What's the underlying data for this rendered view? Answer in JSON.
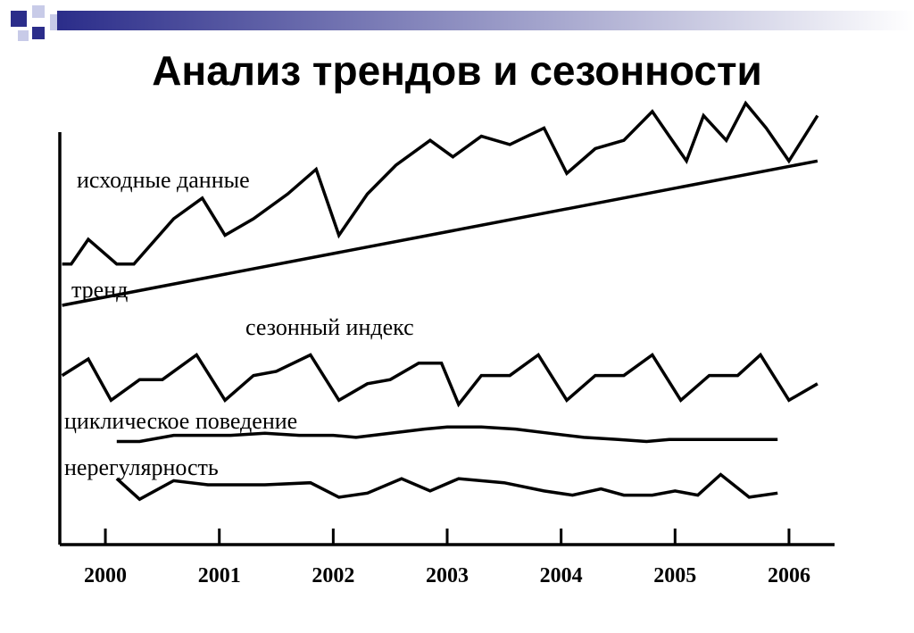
{
  "slide": {
    "title": "Анализ трендов и сезонности"
  },
  "colors": {
    "accent_dark": "#2b2d8a",
    "accent_light": "#c8cbe8",
    "line": "#000000"
  },
  "chart_data": {
    "type": "line",
    "x_unit": "year",
    "xlim": [
      1999.6,
      2006.4
    ],
    "x_ticks": [
      2000,
      2001,
      2002,
      2003,
      2004,
      2005,
      2006
    ],
    "tick_labels": [
      "2000",
      "2001",
      "2002",
      "2003",
      "2004",
      "2005",
      "2006"
    ],
    "y_axis_labeled": false,
    "ylim": [
      0,
      100
    ],
    "grid": false,
    "series": [
      {
        "name": "исходные данные",
        "x": [
          1999.62,
          1999.7,
          1999.85,
          2000.1,
          2000.25,
          2000.6,
          2000.85,
          2001.05,
          2001.3,
          2001.6,
          2001.85,
          2002.05,
          2002.3,
          2002.55,
          2002.85,
          2003.05,
          2003.3,
          2003.55,
          2003.85,
          2004.05,
          2004.3,
          2004.55,
          2004.8,
          2004.95,
          2005.1,
          2005.25,
          2005.45,
          2005.62,
          2005.8,
          2006.0,
          2006.25
        ],
        "values": [
          68,
          68,
          74,
          68,
          68,
          79,
          84,
          75,
          79,
          85,
          91,
          75,
          85,
          92,
          98,
          94,
          99,
          97,
          101,
          90,
          96,
          98,
          105,
          99,
          93,
          104,
          98,
          107,
          101,
          93,
          104
        ]
      },
      {
        "name": "тренд",
        "x": [
          1999.62,
          2006.25
        ],
        "values": [
          58,
          93
        ]
      },
      {
        "name": "сезонный индекс",
        "x": [
          1999.62,
          1999.85,
          2000.05,
          2000.3,
          2000.5,
          2000.8,
          2001.05,
          2001.3,
          2001.5,
          2001.8,
          2002.05,
          2002.3,
          2002.5,
          2002.75,
          2002.95,
          2003.1,
          2003.3,
          2003.55,
          2003.8,
          2004.05,
          2004.3,
          2004.55,
          2004.8,
          2005.05,
          2005.3,
          2005.55,
          2005.75,
          2006.0,
          2006.25
        ],
        "values": [
          41,
          45,
          35,
          40,
          40,
          46,
          35,
          41,
          42,
          46,
          35,
          39,
          40,
          44,
          44,
          34,
          41,
          41,
          46,
          35,
          41,
          41,
          46,
          35,
          41,
          41,
          46,
          35,
          39
        ]
      },
      {
        "name": "циклическое поведение",
        "x": [
          2000.1,
          2000.3,
          2000.6,
          2000.9,
          2001.1,
          2001.4,
          2001.7,
          2002.0,
          2002.2,
          2002.5,
          2002.8,
          2003.0,
          2003.3,
          2003.6,
          2003.9,
          2004.2,
          2004.5,
          2004.75,
          2004.95,
          2005.2,
          2005.5,
          2005.9
        ],
        "values": [
          25,
          25,
          26.5,
          26.5,
          26.5,
          27,
          26.5,
          26.5,
          26,
          27,
          28,
          28.5,
          28.5,
          28,
          27,
          26,
          25.5,
          25,
          25.5,
          25.5,
          25.5,
          25.5
        ]
      },
      {
        "name": "нерегулярность",
        "x": [
          2000.1,
          2000.3,
          2000.6,
          2000.9,
          2001.1,
          2001.4,
          2001.8,
          2002.05,
          2002.3,
          2002.6,
          2002.85,
          2003.1,
          2003.5,
          2003.85,
          2004.1,
          2004.35,
          2004.55,
          2004.8,
          2005.0,
          2005.2,
          2005.4,
          2005.65,
          2005.9
        ],
        "values": [
          16,
          11,
          15.5,
          14.5,
          14.5,
          14.5,
          15,
          11.5,
          12.5,
          16,
          13,
          16,
          15,
          13,
          12,
          13.5,
          12,
          12,
          13,
          12,
          17,
          11.5,
          12.5
        ]
      }
    ]
  }
}
